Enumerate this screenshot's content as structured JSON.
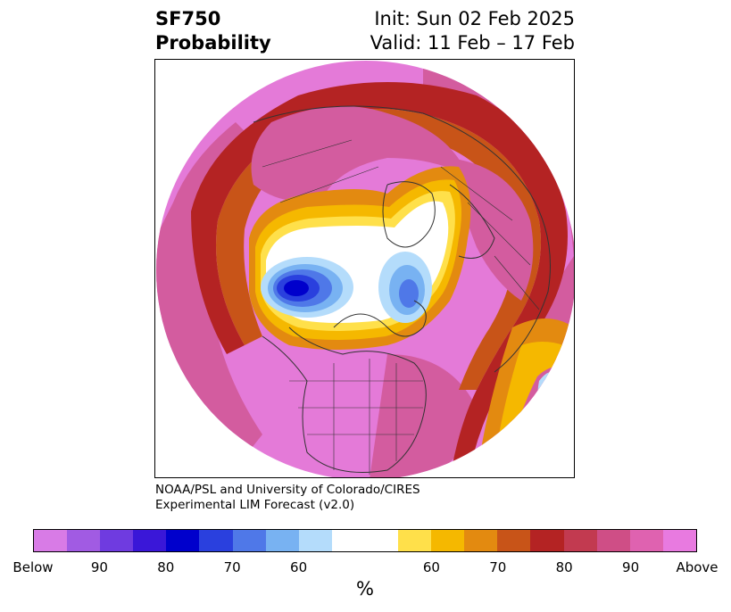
{
  "title": {
    "left_line1": "SF750",
    "left_line2": "Probability",
    "right_line1": "Init: Sun 02 Feb 2025",
    "right_line2": "Valid: 11 Feb – 17 Feb"
  },
  "credit": {
    "line1": "NOAA/PSL and University of Colorado/CIRES",
    "line2": "Experimental LIM Forecast (v2.0)"
  },
  "colorbar": {
    "colors": [
      "#d87be6",
      "#a15be3",
      "#6f3be0",
      "#3a17d8",
      "#0000cc",
      "#2a40de",
      "#4f78e8",
      "#78b2f2",
      "#b4dcfb",
      "#ffffff",
      "#ffe04a",
      "#f5b800",
      "#e38a10",
      "#c85418",
      "#b42323",
      "#c23a50",
      "#cf4e86",
      "#df62b0",
      "#e87ae0"
    ],
    "labels": [
      "Below",
      "90",
      "80",
      "70",
      "60",
      "60",
      "70",
      "80",
      "90",
      "Above"
    ],
    "unit": "%"
  },
  "map": {
    "projection": "north-polar-stereographic",
    "variable": "SF750 probability",
    "palette": {
      "above_high": "#e47ad8",
      "above_mid": "#d35c9f",
      "above_low": "#c63e60",
      "red": "#b42323",
      "orange_dark": "#c85418",
      "orange": "#e38a10",
      "gold": "#f5b800",
      "yellow": "#ffe04a",
      "neutral": "#ffffff",
      "blue_light": "#b4dcfb",
      "blue_mid": "#78b2f2",
      "blue": "#4f78e8",
      "blue_dark": "#2a40de",
      "blue_deep": "#0000cc",
      "border": "#333333"
    }
  }
}
